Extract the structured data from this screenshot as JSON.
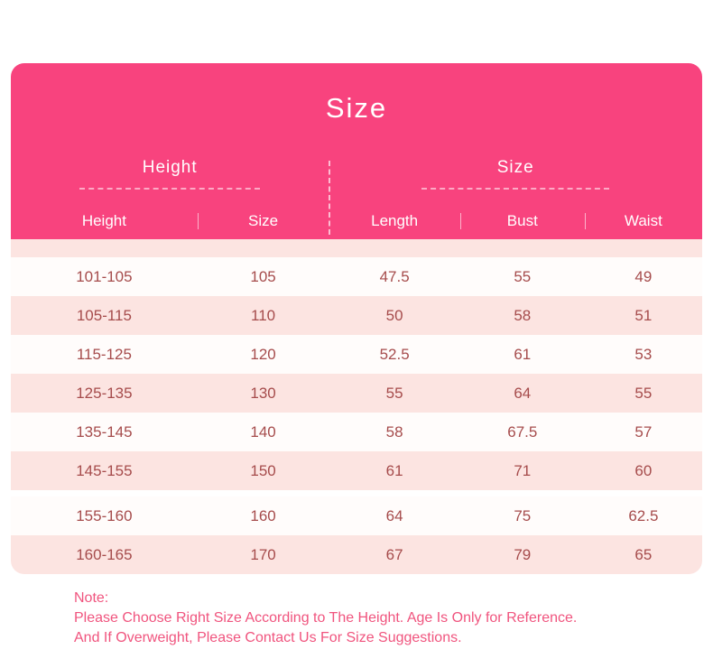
{
  "chart_data": {
    "type": "table",
    "title": "Size",
    "column_groups": [
      {
        "label": "Height",
        "columns": [
          "Height",
          "Size"
        ]
      },
      {
        "label": "Size",
        "columns": [
          "Length",
          "Bust",
          "Waist"
        ]
      }
    ],
    "columns": [
      "Height",
      "Size",
      "Length",
      "Bust",
      "Waist"
    ],
    "rows": [
      [
        "101-105",
        105,
        47.5,
        55,
        49
      ],
      [
        "105-115",
        110,
        50,
        58,
        51
      ],
      [
        "115-125",
        120,
        52.5,
        61,
        53
      ],
      [
        "125-135",
        130,
        55,
        64,
        55
      ],
      [
        "135-145",
        140,
        58,
        67.5,
        57
      ],
      [
        "145-155",
        150,
        61,
        71,
        60
      ],
      [
        "155-160",
        160,
        64,
        75,
        62.5
      ],
      [
        "160-165",
        170,
        67,
        79,
        65
      ]
    ],
    "layout": {
      "striped": true,
      "stripe_colors": [
        "#fffcfb",
        "#fce4e1"
      ],
      "header_color": "#f8437e"
    }
  },
  "note": {
    "label": "Note:",
    "lines": [
      "Please Choose Right Size According to The Height. Age Is Only for Reference.",
      "And If Overweight, Please Contact Us For Size Suggestions."
    ]
  },
  "colors": {
    "header_pink": "#f8437e",
    "row_pink": "#fce4e1",
    "row_light": "#fffcfb",
    "body_text": "#a64c4c",
    "note_text": "#f0547e"
  }
}
